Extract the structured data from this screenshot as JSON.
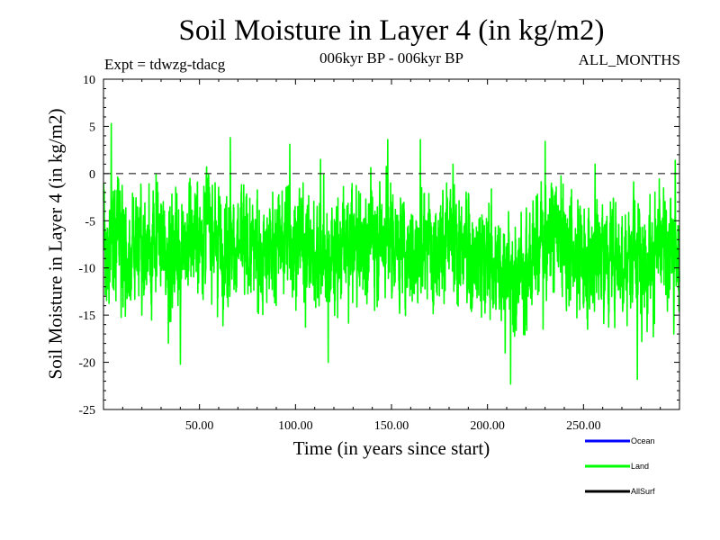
{
  "chart_data": {
    "type": "line",
    "title": "Soil Moisture in Layer 4 (in kg/m2)",
    "subtitle": "006kyr BP - 006kyr BP",
    "experiment": "Expt = tdwzg-tdacg",
    "months": "ALL_MONTHS",
    "xlabel": "Time (in years since start)",
    "ylabel": "Soil Moisture in Layer 4 (in kg/m2)",
    "xlim": [
      0,
      300
    ],
    "ylim": [
      -25,
      10
    ],
    "x_ticks": [
      50,
      100,
      150,
      200,
      250
    ],
    "x_tick_labels": [
      "50.00",
      "100.00",
      "150.00",
      "200.00",
      "250.00"
    ],
    "y_ticks": [
      10,
      5,
      0,
      -5,
      -10,
      -15,
      -20,
      -25
    ],
    "y_tick_labels": [
      "10",
      "5",
      "0",
      "-5",
      "-10",
      "-15",
      "-20",
      "-25"
    ],
    "reference_line": 0,
    "series": [
      {
        "name": "Ocean",
        "color": "#0000ff",
        "values": []
      },
      {
        "name": "Land",
        "color": "#00ff00",
        "monthly_points": 3600,
        "approx_mean_by_decade": [
          -6.5,
          -9.0,
          -7.5,
          -8.5,
          -7.0,
          -5.5,
          -7.5,
          -8.0,
          -9.0,
          -7.0,
          -7.5,
          -9.5,
          -8.0,
          -7.5,
          -6.5,
          -7.5,
          -8.0,
          -7.0,
          -8.0,
          -8.5,
          -10.0,
          -11.5,
          -7.5,
          -6.0,
          -8.5,
          -9.0,
          -8.0,
          -9.0,
          -8.5,
          -8.0
        ],
        "extremes": [
          {
            "x": 4,
            "y": 5.3
          },
          {
            "x": 40,
            "y": -20.2
          },
          {
            "x": 66,
            "y": 3.8
          },
          {
            "x": 97,
            "y": 3.1
          },
          {
            "x": 113,
            "y": 1.5
          },
          {
            "x": 117,
            "y": -20.0
          },
          {
            "x": 148,
            "y": 3.6
          },
          {
            "x": 165,
            "y": 3.6
          },
          {
            "x": 182,
            "y": 1.0
          },
          {
            "x": 212,
            "y": -22.3
          },
          {
            "x": 230,
            "y": 3.4
          },
          {
            "x": 256,
            "y": 1.0
          },
          {
            "x": 278,
            "y": -21.8
          },
          {
            "x": 297,
            "y": -17.0
          }
        ]
      },
      {
        "name": "AllSurf",
        "color": "#000000",
        "values": []
      }
    ],
    "legend": [
      {
        "label": "Ocean",
        "color": "#0000ff"
      },
      {
        "label": "Land",
        "color": "#00ff00"
      },
      {
        "label": "AllSurf",
        "color": "#000000"
      }
    ]
  }
}
